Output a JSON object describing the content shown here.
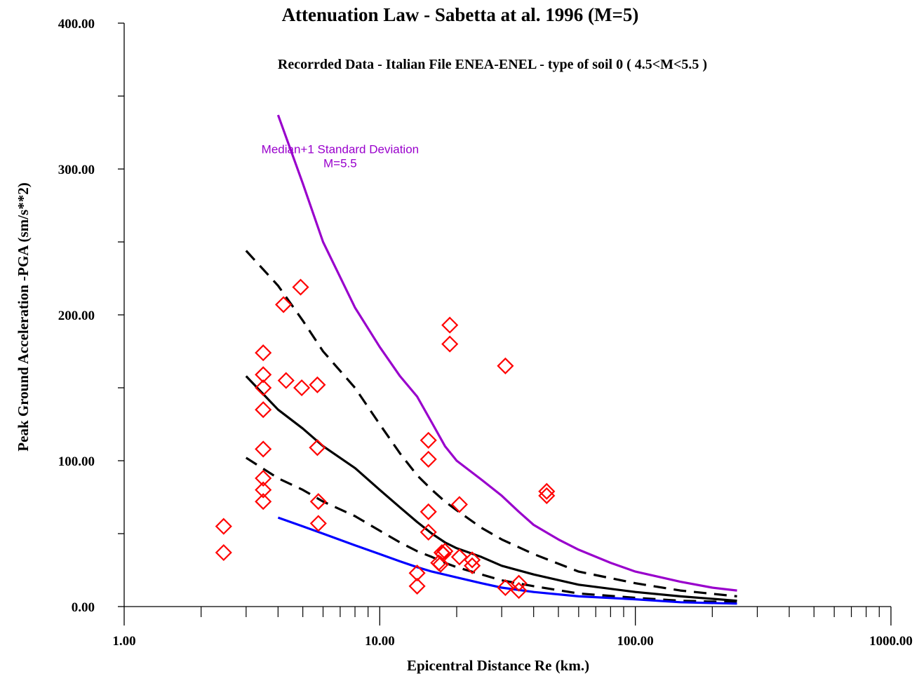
{
  "chart_data": {
    "type": "scatter",
    "title": "Attenuation Law - Sabetta at al. 1996 (M=5)",
    "subtitle": "Recorrded Data - Italian File ENEA-ENEL - type of soil 0 ( 4.5<M<5.5 )",
    "xlabel": "Epicentral Distance Re (km.)",
    "ylabel": "Peak Ground Acceleration -PGA (sm/s**2)",
    "xscale": "log",
    "xlim": [
      1,
      1000
    ],
    "ylim": [
      0,
      400
    ],
    "x_ticks": [
      {
        "value": 1,
        "label": "1.00"
      },
      {
        "value": 10,
        "label": "10.00"
      },
      {
        "value": 100,
        "label": "100.00"
      },
      {
        "value": 1000,
        "label": "1000.00"
      }
    ],
    "y_ticks": [
      {
        "value": 0,
        "label": "0.00"
      },
      {
        "value": 100,
        "label": "100.00"
      },
      {
        "value": 200,
        "label": "200.00"
      },
      {
        "value": 300,
        "label": "300.00"
      },
      {
        "value": 400,
        "label": "400.00"
      }
    ],
    "grid": false,
    "annotation": {
      "lines": [
        "Median+1 Standard Deviation",
        "M=5.5"
      ],
      "x": 7.0,
      "y": 306,
      "color": "#9900cc"
    },
    "curves": [
      {
        "color": "#9900cc",
        "dash": "solid",
        "points": [
          [
            4.0,
            337
          ],
          [
            5,
            290
          ],
          [
            6,
            250
          ],
          [
            8,
            205
          ],
          [
            10,
            178
          ],
          [
            12,
            158
          ],
          [
            14,
            144
          ],
          [
            16,
            126
          ],
          [
            18,
            110
          ],
          [
            20,
            100
          ],
          [
            25,
            87
          ],
          [
            30,
            76
          ],
          [
            35,
            65
          ],
          [
            40,
            56
          ],
          [
            50,
            46
          ],
          [
            60,
            39
          ],
          [
            80,
            30
          ],
          [
            100,
            24
          ],
          [
            150,
            17
          ],
          [
            200,
            13
          ],
          [
            250,
            11
          ]
        ]
      },
      {
        "color": "#000000",
        "dash": "dashed",
        "points": [
          [
            3.0,
            244
          ],
          [
            4,
            220
          ],
          [
            5,
            196
          ],
          [
            6,
            175
          ],
          [
            8,
            150
          ],
          [
            10,
            125
          ],
          [
            12,
            105
          ],
          [
            14,
            90
          ],
          [
            16,
            80
          ],
          [
            18,
            72
          ],
          [
            20,
            66
          ],
          [
            25,
            54
          ],
          [
            30,
            46
          ],
          [
            40,
            36
          ],
          [
            60,
            24
          ],
          [
            100,
            16
          ],
          [
            150,
            11
          ],
          [
            250,
            7
          ]
        ]
      },
      {
        "color": "#000000",
        "dash": "solid",
        "points": [
          [
            3.0,
            158
          ],
          [
            4,
            135
          ],
          [
            5,
            122
          ],
          [
            6,
            110
          ],
          [
            8,
            95
          ],
          [
            10,
            80
          ],
          [
            12,
            68
          ],
          [
            14,
            58
          ],
          [
            16,
            50
          ],
          [
            18,
            44
          ],
          [
            20,
            40
          ],
          [
            25,
            34
          ],
          [
            30,
            28
          ],
          [
            40,
            22
          ],
          [
            60,
            15
          ],
          [
            100,
            10
          ],
          [
            150,
            7
          ],
          [
            250,
            4
          ]
        ]
      },
      {
        "color": "#000000",
        "dash": "dashed",
        "points": [
          [
            3.0,
            102
          ],
          [
            4,
            88
          ],
          [
            5,
            80
          ],
          [
            6,
            72
          ],
          [
            8,
            62
          ],
          [
            10,
            52
          ],
          [
            12,
            44
          ],
          [
            14,
            38
          ],
          [
            16,
            34
          ],
          [
            18,
            30
          ],
          [
            20,
            27
          ],
          [
            25,
            22
          ],
          [
            30,
            18
          ],
          [
            40,
            14
          ],
          [
            60,
            9
          ],
          [
            100,
            6
          ],
          [
            150,
            4
          ],
          [
            250,
            3
          ]
        ]
      },
      {
        "color": "#0000ff",
        "dash": "solid",
        "points": [
          [
            4.0,
            61
          ],
          [
            5,
            55
          ],
          [
            6,
            50
          ],
          [
            8,
            42
          ],
          [
            10,
            36
          ],
          [
            12,
            31
          ],
          [
            14,
            27
          ],
          [
            16,
            24
          ],
          [
            20,
            20
          ],
          [
            25,
            16
          ],
          [
            30,
            13
          ],
          [
            40,
            10
          ],
          [
            60,
            7
          ],
          [
            100,
            5
          ],
          [
            150,
            3
          ],
          [
            250,
            2
          ]
        ]
      }
    ],
    "marker": {
      "shape": "diamond",
      "color": "#ff0000"
    },
    "points": [
      [
        2.45,
        55
      ],
      [
        2.45,
        37
      ],
      [
        3.5,
        174
      ],
      [
        3.5,
        159
      ],
      [
        3.5,
        150
      ],
      [
        3.5,
        135
      ],
      [
        3.5,
        108
      ],
      [
        3.5,
        88
      ],
      [
        3.5,
        80
      ],
      [
        3.5,
        72
      ],
      [
        4.2,
        207
      ],
      [
        4.3,
        155
      ],
      [
        4.9,
        219
      ],
      [
        4.95,
        150
      ],
      [
        5.7,
        152
      ],
      [
        5.7,
        109
      ],
      [
        5.75,
        72
      ],
      [
        5.75,
        57
      ],
      [
        14.0,
        23
      ],
      [
        14.0,
        14
      ],
      [
        15.5,
        114
      ],
      [
        15.5,
        101
      ],
      [
        15.5,
        65
      ],
      [
        15.5,
        51
      ],
      [
        17.0,
        30
      ],
      [
        17.3,
        29
      ],
      [
        17.5,
        37
      ],
      [
        17.7,
        36
      ],
      [
        18.0,
        38
      ],
      [
        18.8,
        193
      ],
      [
        18.8,
        180
      ],
      [
        20.5,
        70
      ],
      [
        20.5,
        34
      ],
      [
        23.0,
        32
      ],
      [
        23.0,
        28
      ],
      [
        31.0,
        165
      ],
      [
        31.0,
        13
      ],
      [
        35.0,
        16
      ],
      [
        35.0,
        11
      ],
      [
        45.0,
        79
      ],
      [
        45.0,
        76
      ]
    ]
  }
}
